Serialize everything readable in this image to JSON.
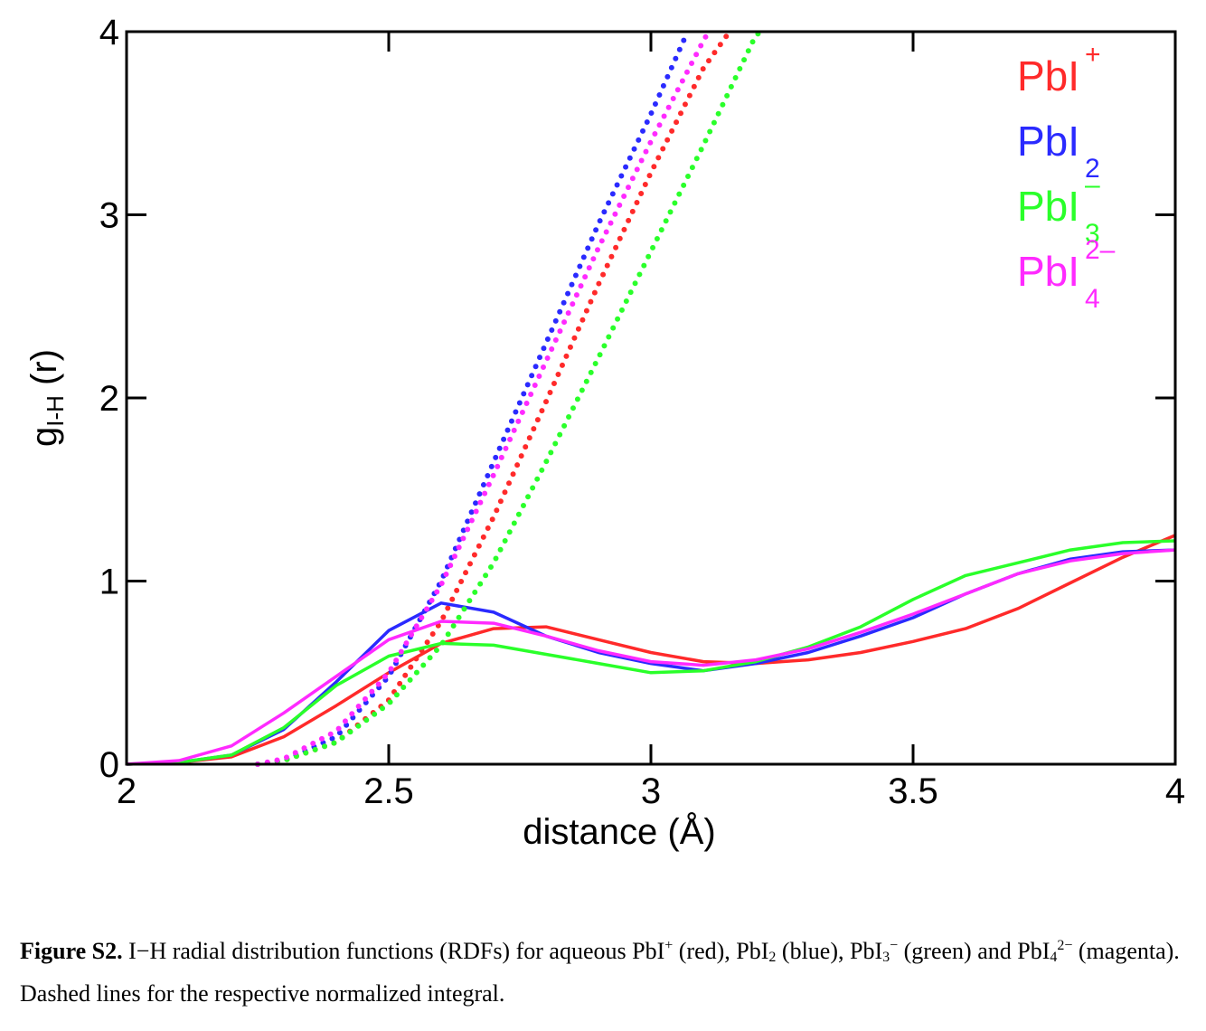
{
  "chart_data": {
    "type": "line",
    "title": "",
    "xlabel": "distance (Å)",
    "ylabel": {
      "main": "g",
      "sub": "I-H",
      "suffix": " (r)"
    },
    "xlim": [
      2,
      4
    ],
    "ylim": [
      0,
      4
    ],
    "x_ticks": [
      "2",
      "2.5",
      "3",
      "3.5",
      "4"
    ],
    "y_ticks": [
      "0",
      "1",
      "2",
      "3",
      "4"
    ],
    "grid": false,
    "legend_position": "top-right",
    "series": [
      {
        "name": {
          "base": "PbI",
          "sub": "",
          "sup": "+"
        },
        "color": "#ff2a2a",
        "rdf": [
          [
            2.0,
            0
          ],
          [
            2.1,
            0.01
          ],
          [
            2.2,
            0.04
          ],
          [
            2.3,
            0.15
          ],
          [
            2.4,
            0.32
          ],
          [
            2.5,
            0.5
          ],
          [
            2.6,
            0.66
          ],
          [
            2.7,
            0.74
          ],
          [
            2.8,
            0.75
          ],
          [
            2.9,
            0.68
          ],
          [
            3.0,
            0.61
          ],
          [
            3.1,
            0.56
          ],
          [
            3.2,
            0.55
          ],
          [
            3.3,
            0.57
          ],
          [
            3.4,
            0.61
          ],
          [
            3.5,
            0.67
          ],
          [
            3.6,
            0.74
          ],
          [
            3.7,
            0.85
          ],
          [
            3.8,
            0.99
          ],
          [
            3.9,
            1.13
          ],
          [
            4.0,
            1.25
          ]
        ],
        "integral": [
          [
            2.25,
            0
          ],
          [
            2.3,
            0.02
          ],
          [
            2.4,
            0.12
          ],
          [
            2.5,
            0.35
          ],
          [
            2.6,
            0.78
          ],
          [
            2.7,
            1.35
          ],
          [
            2.8,
            1.98
          ],
          [
            2.9,
            2.62
          ],
          [
            3.0,
            3.23
          ],
          [
            3.1,
            3.8
          ],
          [
            3.15,
            4.0
          ]
        ]
      },
      {
        "name": {
          "base": "PbI",
          "sub": "2",
          "sup": ""
        },
        "color": "#2a2aff",
        "rdf": [
          [
            2.0,
            0
          ],
          [
            2.1,
            0.01
          ],
          [
            2.2,
            0.05
          ],
          [
            2.3,
            0.19
          ],
          [
            2.4,
            0.45
          ],
          [
            2.5,
            0.73
          ],
          [
            2.6,
            0.88
          ],
          [
            2.7,
            0.83
          ],
          [
            2.8,
            0.7
          ],
          [
            2.9,
            0.61
          ],
          [
            3.0,
            0.55
          ],
          [
            3.1,
            0.51
          ],
          [
            3.2,
            0.55
          ],
          [
            3.3,
            0.61
          ],
          [
            3.4,
            0.7
          ],
          [
            3.5,
            0.8
          ],
          [
            3.6,
            0.93
          ],
          [
            3.7,
            1.04
          ],
          [
            3.8,
            1.12
          ],
          [
            3.9,
            1.16
          ],
          [
            4.0,
            1.17
          ]
        ],
        "integral": [
          [
            2.25,
            0
          ],
          [
            2.3,
            0.02
          ],
          [
            2.4,
            0.15
          ],
          [
            2.5,
            0.48
          ],
          [
            2.6,
            1.0
          ],
          [
            2.7,
            1.65
          ],
          [
            2.8,
            2.3
          ],
          [
            2.9,
            2.95
          ],
          [
            3.0,
            3.55
          ],
          [
            3.07,
            4.0
          ]
        ]
      },
      {
        "name": {
          "base": "PbI",
          "sub": "3",
          "sup": "–"
        },
        "color": "#2aff2a",
        "rdf": [
          [
            2.0,
            0
          ],
          [
            2.1,
            0.01
          ],
          [
            2.2,
            0.05
          ],
          [
            2.3,
            0.2
          ],
          [
            2.4,
            0.43
          ],
          [
            2.5,
            0.59
          ],
          [
            2.6,
            0.66
          ],
          [
            2.7,
            0.65
          ],
          [
            2.8,
            0.6
          ],
          [
            2.9,
            0.55
          ],
          [
            3.0,
            0.5
          ],
          [
            3.1,
            0.51
          ],
          [
            3.2,
            0.56
          ],
          [
            3.3,
            0.64
          ],
          [
            3.4,
            0.75
          ],
          [
            3.5,
            0.9
          ],
          [
            3.6,
            1.03
          ],
          [
            3.7,
            1.1
          ],
          [
            3.8,
            1.17
          ],
          [
            3.9,
            1.21
          ],
          [
            4.0,
            1.22
          ]
        ],
        "integral": [
          [
            2.25,
            0
          ],
          [
            2.3,
            0.02
          ],
          [
            2.4,
            0.12
          ],
          [
            2.5,
            0.33
          ],
          [
            2.6,
            0.65
          ],
          [
            2.7,
            1.1
          ],
          [
            2.8,
            1.65
          ],
          [
            2.9,
            2.22
          ],
          [
            3.0,
            2.8
          ],
          [
            3.1,
            3.38
          ],
          [
            3.2,
            3.98
          ],
          [
            3.21,
            4.0
          ]
        ]
      },
      {
        "name": {
          "base": "PbI",
          "sub": "4",
          "sup": "2–"
        },
        "color": "#ff2aff",
        "rdf": [
          [
            2.0,
            0
          ],
          [
            2.1,
            0.02
          ],
          [
            2.2,
            0.1
          ],
          [
            2.3,
            0.28
          ],
          [
            2.4,
            0.48
          ],
          [
            2.5,
            0.68
          ],
          [
            2.6,
            0.78
          ],
          [
            2.7,
            0.77
          ],
          [
            2.8,
            0.7
          ],
          [
            2.9,
            0.62
          ],
          [
            3.0,
            0.56
          ],
          [
            3.1,
            0.54
          ],
          [
            3.2,
            0.57
          ],
          [
            3.3,
            0.63
          ],
          [
            3.4,
            0.72
          ],
          [
            3.5,
            0.82
          ],
          [
            3.6,
            0.93
          ],
          [
            3.7,
            1.04
          ],
          [
            3.8,
            1.11
          ],
          [
            3.9,
            1.15
          ],
          [
            4.0,
            1.17
          ]
        ],
        "integral": [
          [
            2.25,
            0
          ],
          [
            2.3,
            0.03
          ],
          [
            2.4,
            0.18
          ],
          [
            2.5,
            0.5
          ],
          [
            2.6,
            0.98
          ],
          [
            2.7,
            1.58
          ],
          [
            2.8,
            2.2
          ],
          [
            2.9,
            2.82
          ],
          [
            3.0,
            3.4
          ],
          [
            3.1,
            3.95
          ],
          [
            3.11,
            4.0
          ]
        ]
      }
    ]
  },
  "caption": {
    "label": "Figure S2.",
    "t1": " I−H radial distribution functions (RDFs) for aqueous PbI",
    "s1": "+",
    "t2": " (red), PbI",
    "s2": "2",
    "t3": " (blue), PbI",
    "s3": "3",
    "s4": "−",
    "t4": " (green) and PbI",
    "s5": "4",
    "s6": "2−",
    "t5": " (magenta). Dashed lines for the respective normalized integral."
  }
}
